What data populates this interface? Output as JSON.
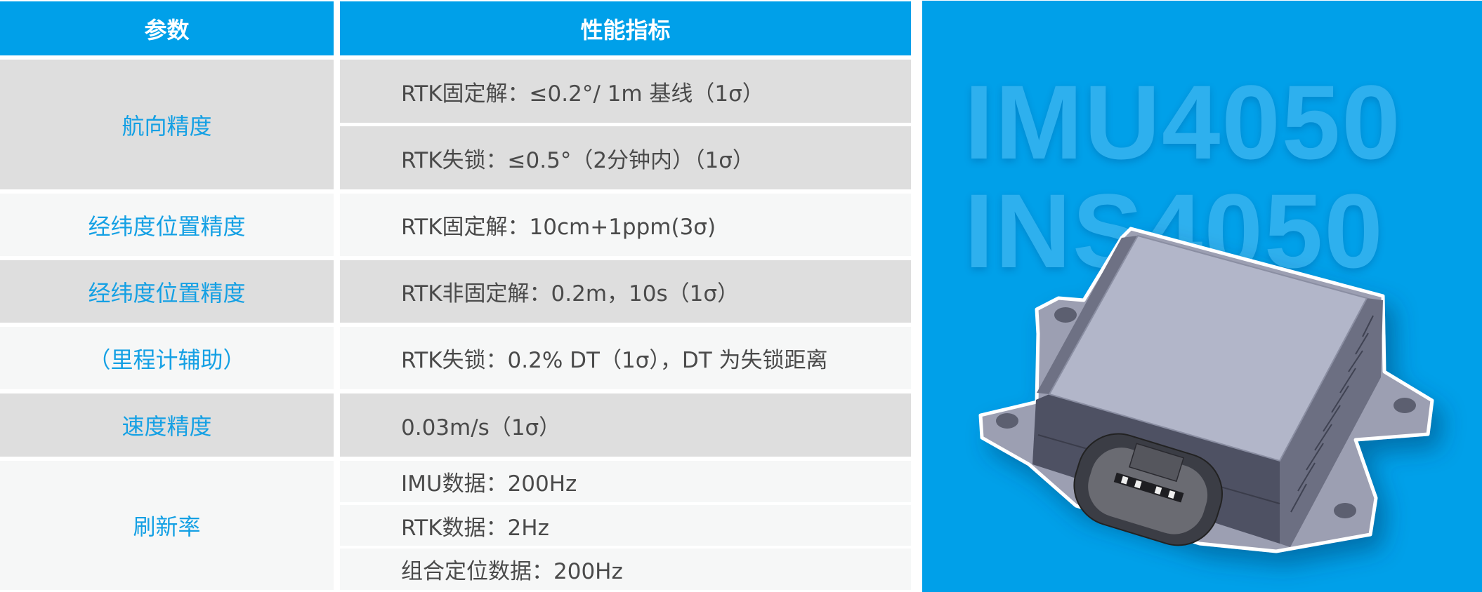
{
  "table": {
    "headers": {
      "param": "参数",
      "spec": "性能指标"
    },
    "rows": [
      {
        "param": "航向精度",
        "values": [
          "RTK固定解：≤0.2°/ 1m 基线（1σ）",
          "RTK失锁：≤0.5°（2分钟内）（1σ）"
        ]
      },
      {
        "param": "经纬度位置精度",
        "values": [
          "RTK固定解：10cm+1ppm(3σ)"
        ]
      },
      {
        "param": "经纬度位置精度",
        "values": [
          "RTK非固定解：0.2m，10s（1σ）"
        ]
      },
      {
        "param": "（里程计辅助）",
        "values": [
          "RTK失锁：0.2% DT（1σ），DT 为失锁距离"
        ]
      },
      {
        "param": "速度精度",
        "values": [
          "0.03m/s（1σ）"
        ]
      },
      {
        "param": "刷新率",
        "values": [
          "IMU数据：200Hz",
          "RTK数据：2Hz",
          "组合定位数据：200Hz"
        ]
      }
    ]
  },
  "product": {
    "watermark_lines": [
      "IMU4050",
      "INS4050"
    ]
  },
  "colors": {
    "header_bg": "#00a0e9",
    "row_dark": "#dedede",
    "row_light": "#f6f7f7",
    "param_text": "#14a0e4",
    "value_text": "#4a4a4a",
    "panel_bg": "#00a0e9"
  }
}
